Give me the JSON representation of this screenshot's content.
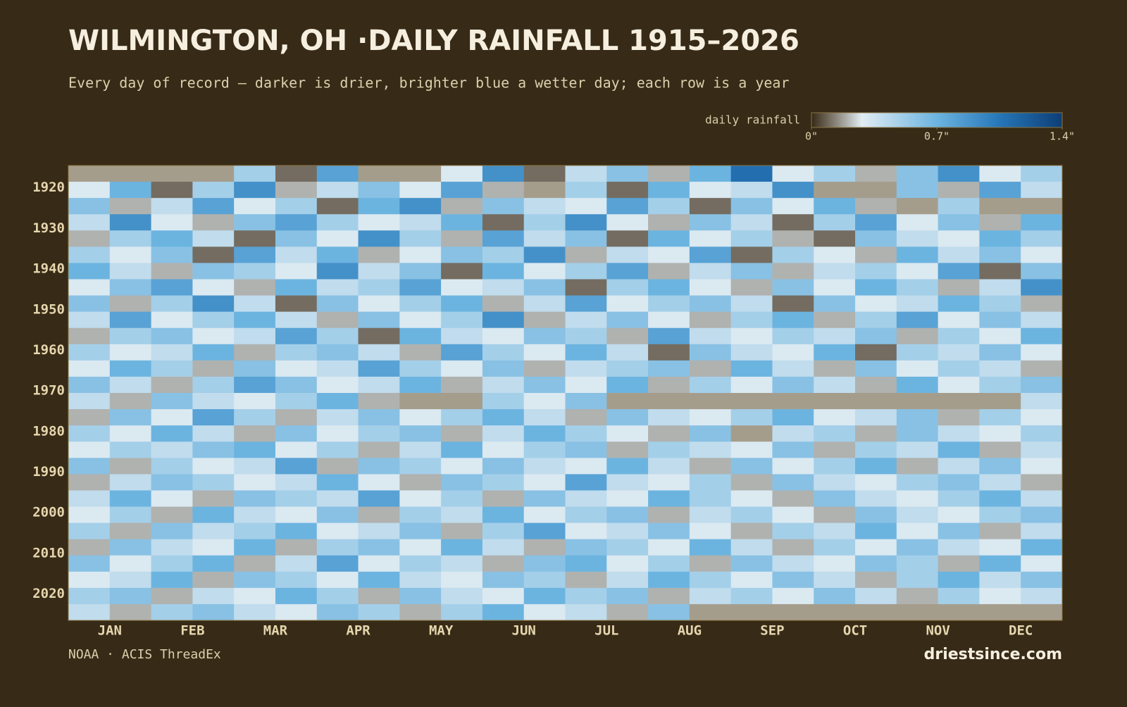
{
  "chart_data": {
    "type": "heatmap",
    "title": "WILMINGTON, OH ·DAILY RAINFALL 1915–2026",
    "subtitle": "Every day of record — darker is drier, brighter blue a wetter day; each row is a year",
    "source": "NOAA · ACIS ThreadEx",
    "brand": "driestsince.com",
    "legend": {
      "label": "daily rainfall",
      "lim": [
        0,
        1.4
      ],
      "ticks": [
        {
          "value": 0,
          "label": "0\""
        },
        {
          "value": 0.7,
          "label": "0.7\""
        },
        {
          "value": 1.4,
          "label": "1.4\""
        }
      ]
    },
    "missing_color": "#a59d8c",
    "months": [
      "JAN",
      "FEB",
      "MAR",
      "APR",
      "MAY",
      "JUN",
      "JUL",
      "AUG",
      "SEP",
      "OCT",
      "NOV",
      "DEC"
    ],
    "ylim": [
      1915,
      2027
    ],
    "yticks": [
      1920,
      1930,
      1940,
      1950,
      1960,
      1970,
      1980,
      1990,
      2000,
      2010,
      2020
    ],
    "rows": [
      {
        "year": 1915,
        "values": [
          null,
          null,
          null,
          null,
          0.5,
          0.1,
          0.8,
          null,
          null,
          0.3,
          0.9,
          0.1,
          0.4,
          0.6,
          0.2,
          0.7,
          1.1,
          0.3,
          0.5,
          0.2,
          0.6,
          0.9,
          0.3,
          0.5
        ]
      },
      {
        "year": 1919,
        "values": [
          0.3,
          0.7,
          0.1,
          0.5,
          0.9,
          0.2,
          0.4,
          0.6,
          0.3,
          0.8,
          0.2,
          null,
          0.5,
          0.1,
          0.7,
          0.3,
          0.4,
          0.9,
          null,
          null,
          0.6,
          0.2,
          0.8,
          0.4
        ]
      },
      {
        "year": 1923,
        "values": [
          0.6,
          0.2,
          0.4,
          0.8,
          0.3,
          0.5,
          0.1,
          0.7,
          0.9,
          0.2,
          0.6,
          0.4,
          0.3,
          0.8,
          0.5,
          0.1,
          0.6,
          0.3,
          0.7,
          0.2,
          null,
          0.5,
          null,
          null
        ]
      },
      {
        "year": 1927,
        "values": [
          0.4,
          0.9,
          0.3,
          0.2,
          0.6,
          0.8,
          0.5,
          0.3,
          0.4,
          0.7,
          0.1,
          0.5,
          0.9,
          0.3,
          0.2,
          0.6,
          0.4,
          0.1,
          0.5,
          0.8,
          0.3,
          0.6,
          0.2,
          0.7
        ]
      },
      {
        "year": 1931,
        "values": [
          0.2,
          0.5,
          0.7,
          0.4,
          0.1,
          0.6,
          0.3,
          0.9,
          0.5,
          0.2,
          0.8,
          0.4,
          0.6,
          0.1,
          0.7,
          0.3,
          0.5,
          0.2,
          0.1,
          0.6,
          0.4,
          0.3,
          0.7,
          0.5
        ]
      },
      {
        "year": 1935,
        "values": [
          0.5,
          0.3,
          0.6,
          0.1,
          0.8,
          0.4,
          0.7,
          0.2,
          0.3,
          0.6,
          0.5,
          0.9,
          0.2,
          0.4,
          0.3,
          0.8,
          0.1,
          0.5,
          0.3,
          0.2,
          0.7,
          0.4,
          0.6,
          0.3
        ]
      },
      {
        "year": 1939,
        "values": [
          0.7,
          0.4,
          0.2,
          0.6,
          0.5,
          0.3,
          0.9,
          0.4,
          0.6,
          0.1,
          0.7,
          0.3,
          0.5,
          0.8,
          0.2,
          0.4,
          0.6,
          0.2,
          0.4,
          0.5,
          0.3,
          0.8,
          0.1,
          0.6
        ]
      },
      {
        "year": 1943,
        "values": [
          0.3,
          0.6,
          0.8,
          0.3,
          0.2,
          0.7,
          0.4,
          0.5,
          0.8,
          0.3,
          0.4,
          0.6,
          0.1,
          0.5,
          0.7,
          0.3,
          0.2,
          0.6,
          0.3,
          0.7,
          0.5,
          0.2,
          0.4,
          0.9
        ]
      },
      {
        "year": 1947,
        "values": [
          0.6,
          0.2,
          0.5,
          0.9,
          0.4,
          0.1,
          0.6,
          0.3,
          0.5,
          0.7,
          0.2,
          0.4,
          0.8,
          0.3,
          0.5,
          0.6,
          0.4,
          0.1,
          0.6,
          0.3,
          0.4,
          0.7,
          0.5,
          0.2
        ]
      },
      {
        "year": 1951,
        "values": [
          0.4,
          0.8,
          0.3,
          0.5,
          0.7,
          0.4,
          0.2,
          0.6,
          0.3,
          0.5,
          0.9,
          0.2,
          0.4,
          0.6,
          0.3,
          0.2,
          0.5,
          0.7,
          0.2,
          0.5,
          0.8,
          0.3,
          0.6,
          0.4
        ]
      },
      {
        "year": 1955,
        "values": [
          0.2,
          0.5,
          0.6,
          0.3,
          0.4,
          0.8,
          0.5,
          0.1,
          0.7,
          0.4,
          0.3,
          0.6,
          0.5,
          0.2,
          0.8,
          0.4,
          0.3,
          0.5,
          0.4,
          0.6,
          0.2,
          0.5,
          0.3,
          0.7
        ]
      },
      {
        "year": 1959,
        "values": [
          0.5,
          0.3,
          0.4,
          0.7,
          0.2,
          0.5,
          0.6,
          0.4,
          0.2,
          0.8,
          0.5,
          0.3,
          0.7,
          0.4,
          0.1,
          0.6,
          0.4,
          0.3,
          0.7,
          0.1,
          0.5,
          0.4,
          0.6,
          0.3
        ]
      },
      {
        "year": 1963,
        "values": [
          0.3,
          0.7,
          0.5,
          0.2,
          0.6,
          0.3,
          0.4,
          0.8,
          0.5,
          0.3,
          0.6,
          0.2,
          0.4,
          0.5,
          0.6,
          0.2,
          0.7,
          0.4,
          0.2,
          0.6,
          0.3,
          0.5,
          0.4,
          0.2
        ]
      },
      {
        "year": 1967,
        "values": [
          0.6,
          0.4,
          0.2,
          0.5,
          0.8,
          0.6,
          0.3,
          0.4,
          0.7,
          0.2,
          0.4,
          0.6,
          0.3,
          0.7,
          0.2,
          0.5,
          0.3,
          0.6,
          0.4,
          0.2,
          0.7,
          0.3,
          0.5,
          0.6
        ]
      },
      {
        "year": 1971,
        "values": [
          0.4,
          0.2,
          0.6,
          0.4,
          0.3,
          0.5,
          0.7,
          0.2,
          null,
          null,
          0.5,
          0.3,
          0.6,
          null,
          null,
          null,
          null,
          null,
          null,
          null,
          null,
          null,
          null,
          0.4
        ]
      },
      {
        "year": 1975,
        "values": [
          0.2,
          0.6,
          0.3,
          0.8,
          0.5,
          0.2,
          0.4,
          0.6,
          0.3,
          0.5,
          0.7,
          0.4,
          0.2,
          0.6,
          0.4,
          0.3,
          0.5,
          0.7,
          0.3,
          0.4,
          0.6,
          0.2,
          0.5,
          0.3
        ]
      },
      {
        "year": 1979,
        "values": [
          0.5,
          0.3,
          0.7,
          0.4,
          0.2,
          0.6,
          0.3,
          0.5,
          0.6,
          0.2,
          0.4,
          0.7,
          0.5,
          0.3,
          0.2,
          0.6,
          null,
          0.4,
          0.5,
          0.2,
          0.6,
          0.4,
          0.3,
          0.5
        ]
      },
      {
        "year": 1983,
        "values": [
          0.3,
          0.5,
          0.4,
          0.6,
          0.7,
          0.3,
          0.5,
          0.2,
          0.4,
          0.7,
          0.3,
          0.5,
          0.6,
          0.2,
          0.5,
          0.4,
          0.3,
          0.6,
          0.2,
          0.5,
          0.4,
          0.7,
          0.2,
          0.4
        ]
      },
      {
        "year": 1987,
        "values": [
          0.6,
          0.2,
          0.5,
          0.3,
          0.4,
          0.8,
          0.2,
          0.6,
          0.5,
          0.3,
          0.6,
          0.4,
          0.3,
          0.7,
          0.4,
          0.2,
          0.6,
          0.3,
          0.5,
          0.7,
          0.2,
          0.4,
          0.6,
          0.3
        ]
      },
      {
        "year": 1991,
        "values": [
          0.2,
          0.4,
          0.6,
          0.5,
          0.3,
          0.4,
          0.7,
          0.3,
          0.2,
          0.6,
          0.5,
          0.3,
          0.8,
          0.4,
          0.3,
          0.5,
          0.2,
          0.6,
          0.4,
          0.3,
          0.5,
          0.6,
          0.4,
          0.2
        ]
      },
      {
        "year": 1995,
        "values": [
          0.4,
          0.7,
          0.3,
          0.2,
          0.6,
          0.5,
          0.4,
          0.8,
          0.3,
          0.5,
          0.2,
          0.6,
          0.4,
          0.3,
          0.7,
          0.5,
          0.3,
          0.2,
          0.6,
          0.4,
          0.3,
          0.5,
          0.7,
          0.4
        ]
      },
      {
        "year": 1999,
        "values": [
          0.3,
          0.5,
          0.2,
          0.7,
          0.4,
          0.3,
          0.6,
          0.2,
          0.5,
          0.4,
          0.7,
          0.3,
          0.5,
          0.6,
          0.2,
          0.4,
          0.5,
          0.3,
          0.2,
          0.6,
          0.4,
          0.3,
          0.5,
          0.6
        ]
      },
      {
        "year": 2003,
        "values": [
          0.5,
          0.2,
          0.6,
          0.4,
          0.5,
          0.7,
          0.3,
          0.4,
          0.6,
          0.2,
          0.5,
          0.8,
          0.3,
          0.4,
          0.6,
          0.3,
          0.2,
          0.5,
          0.4,
          0.7,
          0.3,
          0.6,
          0.2,
          0.4
        ]
      },
      {
        "year": 2007,
        "values": [
          0.2,
          0.6,
          0.4,
          0.3,
          0.7,
          0.2,
          0.5,
          0.6,
          0.3,
          0.7,
          0.4,
          0.2,
          0.6,
          0.5,
          0.3,
          0.7,
          0.4,
          0.2,
          0.5,
          0.3,
          0.6,
          0.4,
          0.3,
          0.7
        ]
      },
      {
        "year": 2011,
        "values": [
          0.6,
          0.3,
          0.5,
          0.7,
          0.2,
          0.4,
          0.8,
          0.3,
          0.5,
          0.4,
          0.2,
          0.6,
          0.7,
          0.3,
          0.5,
          0.2,
          0.6,
          0.4,
          0.3,
          0.6,
          0.5,
          0.2,
          0.7,
          0.3
        ]
      },
      {
        "year": 2015,
        "values": [
          0.3,
          0.4,
          0.7,
          0.2,
          0.6,
          0.5,
          0.3,
          0.7,
          0.4,
          0.3,
          0.6,
          0.5,
          0.2,
          0.4,
          0.7,
          0.5,
          0.3,
          0.6,
          0.4,
          0.2,
          0.5,
          0.7,
          0.4,
          0.6
        ]
      },
      {
        "year": 2019,
        "values": [
          0.5,
          0.6,
          0.2,
          0.4,
          0.3,
          0.7,
          0.5,
          0.2,
          0.6,
          0.4,
          0.3,
          0.7,
          0.5,
          0.6,
          0.2,
          0.4,
          0.5,
          0.3,
          0.6,
          0.4,
          0.2,
          0.5,
          0.3,
          0.4
        ]
      },
      {
        "year": 2023,
        "values": [
          0.4,
          0.2,
          0.5,
          0.6,
          0.4,
          0.3,
          0.6,
          0.5,
          0.2,
          0.5,
          0.7,
          0.3,
          0.4,
          0.2,
          0.6,
          null,
          null,
          null,
          null,
          null,
          null,
          null,
          null,
          null
        ]
      }
    ]
  }
}
